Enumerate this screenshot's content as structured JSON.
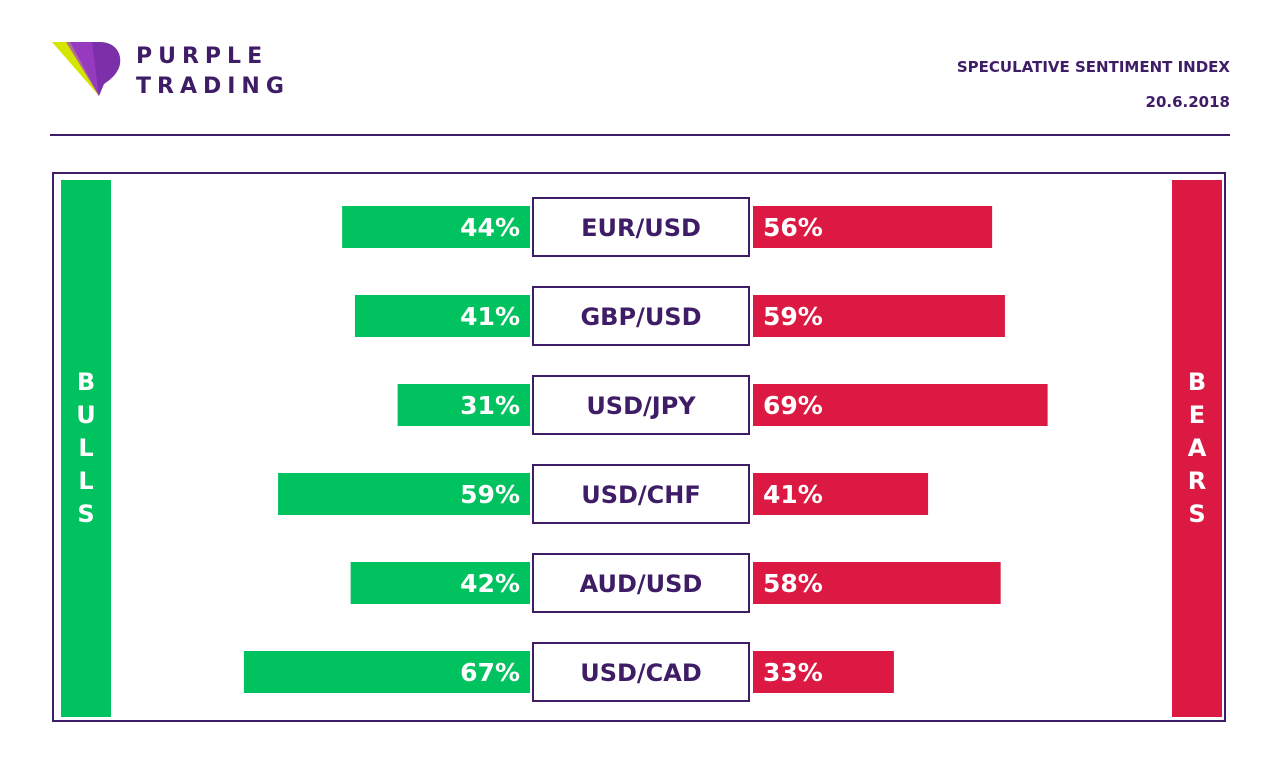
{
  "brand": {
    "line1": "PURPLE",
    "line2": "TRADING"
  },
  "header": {
    "title": "SPECULATIVE SENTIMENT INDEX",
    "date": "20.6.2018"
  },
  "bulls_label": "BULLS",
  "bears_label": "BEARS",
  "colors": {
    "bull": "#00c35f",
    "bear": "#dc1942",
    "purple": "#3f1d66",
    "logo_yellow": "#d4e600"
  },
  "chart_data": {
    "type": "bar",
    "orientation": "horizontal-diverging",
    "categories": [
      "EUR/USD",
      "GBP/USD",
      "USD/JPY",
      "USD/CHF",
      "AUD/USD",
      "USD/CAD"
    ],
    "series": [
      {
        "name": "BULLS",
        "values": [
          44,
          41,
          31,
          59,
          42,
          67
        ],
        "labels": [
          "44%",
          "41%",
          "31%",
          "59%",
          "42%",
          "67%"
        ],
        "color": "#00c35f"
      },
      {
        "name": "BEARS",
        "values": [
          56,
          59,
          69,
          41,
          58,
          33
        ],
        "labels": [
          "56%",
          "59%",
          "69%",
          "41%",
          "58%",
          "33%"
        ],
        "color": "#dc1942"
      }
    ]
  }
}
